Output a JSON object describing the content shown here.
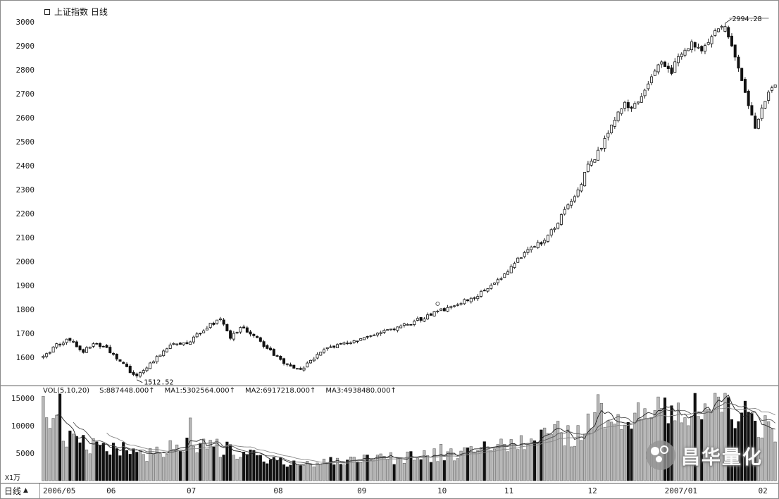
{
  "window": {
    "title": "上证指数 日线"
  },
  "price_pane": {
    "y_ticks": [
      "3000",
      "2900",
      "2800",
      "2700",
      "2600",
      "2500",
      "2400",
      "2300",
      "2200",
      "2100",
      "2000",
      "1900",
      "1800",
      "1700",
      "1600"
    ],
    "low_label": "1512.52",
    "high_label": "2994.28"
  },
  "volume_pane": {
    "header": {
      "indicator": "VOL(5,10,20)",
      "values": [
        "S:887448.000↑",
        "MA1:5302564.000↑",
        "MA2:6917218.000↑",
        "MA3:4938480.000↑"
      ]
    },
    "y_ticks": [
      "15000",
      "10000",
      "5000"
    ],
    "unit_label": "X1万"
  },
  "x_axis": {
    "period_label": "日线",
    "period_arrow": "▲",
    "labels": [
      "2006/05",
      "06",
      "07",
      "08",
      "09",
      "10",
      "11",
      "12",
      "2007/01",
      "02"
    ]
  },
  "watermark": {
    "text": "昌华量化"
  },
  "colors": {
    "up_body": "#ffffff",
    "down_body": "#111111",
    "outline": "#111111",
    "up_volume": "#b8b8b8",
    "ma_colors": [
      "#222222",
      "#555555",
      "#888888"
    ],
    "axis_text": "#222222"
  },
  "chart_data": {
    "type": "candlestick",
    "title": "上证指数 日线 (Shanghai Composite Index, daily, 2006/05 - 2007/02)",
    "x_labels": [
      "2006/05",
      "06",
      "07",
      "08",
      "09",
      "10",
      "11",
      "12",
      "2007/01",
      "02"
    ],
    "x_label_days": [
      0,
      19,
      43,
      69,
      94,
      118,
      138,
      163,
      186,
      214
    ],
    "days_total": 220,
    "price_axis": {
      "min": 1480,
      "max": 3060,
      "ticks": [
        1600,
        1700,
        1800,
        1900,
        2000,
        2100,
        2200,
        2300,
        2400,
        2500,
        2600,
        2700,
        2800,
        2900,
        3000
      ]
    },
    "volume_axis": {
      "ticks": [
        5000,
        10000,
        15000
      ],
      "unit": "×10000",
      "max": 16000
    },
    "annotations": {
      "low": {
        "day": 28,
        "value": 1512.52
      },
      "high": {
        "day": 204,
        "value": 2994.28
      },
      "circle_marker": {
        "day": 118,
        "price": 1800
      }
    },
    "close_anchors": [
      [
        0,
        1600
      ],
      [
        4,
        1650
      ],
      [
        8,
        1675
      ],
      [
        12,
        1625
      ],
      [
        16,
        1658
      ],
      [
        19,
        1635
      ],
      [
        22,
        1600
      ],
      [
        25,
        1555
      ],
      [
        28,
        1515
      ],
      [
        31,
        1562
      ],
      [
        35,
        1612
      ],
      [
        39,
        1655
      ],
      [
        43,
        1662
      ],
      [
        47,
        1700
      ],
      [
        50,
        1735
      ],
      [
        53,
        1757
      ],
      [
        56,
        1685
      ],
      [
        59,
        1722
      ],
      [
        62,
        1705
      ],
      [
        65,
        1660
      ],
      [
        69,
        1612
      ],
      [
        72,
        1575
      ],
      [
        75,
        1548
      ],
      [
        78,
        1560
      ],
      [
        81,
        1600
      ],
      [
        85,
        1638
      ],
      [
        89,
        1652
      ],
      [
        94,
        1668
      ],
      [
        98,
        1692
      ],
      [
        102,
        1712
      ],
      [
        106,
        1728
      ],
      [
        110,
        1742
      ],
      [
        114,
        1768
      ],
      [
        118,
        1790
      ],
      [
        122,
        1812
      ],
      [
        126,
        1838
      ],
      [
        130,
        1862
      ],
      [
        134,
        1898
      ],
      [
        138,
        1945
      ],
      [
        141,
        1995
      ],
      [
        144,
        2040
      ],
      [
        147,
        2065
      ],
      [
        150,
        2090
      ],
      [
        153,
        2140
      ],
      [
        156,
        2210
      ],
      [
        159,
        2280
      ],
      [
        161,
        2330
      ],
      [
        163,
        2395
      ],
      [
        166,
        2455
      ],
      [
        169,
        2535
      ],
      [
        172,
        2615
      ],
      [
        174,
        2660
      ],
      [
        176,
        2635
      ],
      [
        179,
        2700
      ],
      [
        182,
        2765
      ],
      [
        185,
        2830
      ],
      [
        188,
        2795
      ],
      [
        191,
        2870
      ],
      [
        194,
        2915
      ],
      [
        197,
        2865
      ],
      [
        200,
        2945
      ],
      [
        204,
        2988
      ],
      [
        206,
        2905
      ],
      [
        208,
        2805
      ],
      [
        210,
        2700
      ],
      [
        212,
        2615
      ],
      [
        213,
        2555
      ],
      [
        215,
        2640
      ],
      [
        217,
        2705
      ],
      [
        219,
        2740
      ]
    ],
    "volume_anchors": [
      [
        0,
        9000
      ],
      [
        3,
        10000
      ],
      [
        6,
        8200
      ],
      [
        10,
        7200
      ],
      [
        14,
        6400
      ],
      [
        18,
        7000
      ],
      [
        22,
        6000
      ],
      [
        26,
        5000
      ],
      [
        30,
        4300
      ],
      [
        35,
        5200
      ],
      [
        40,
        6200
      ],
      [
        45,
        6800
      ],
      [
        50,
        6400
      ],
      [
        55,
        5600
      ],
      [
        60,
        5000
      ],
      [
        65,
        4300
      ],
      [
        70,
        3700
      ],
      [
        75,
        3200
      ],
      [
        80,
        3400
      ],
      [
        85,
        3600
      ],
      [
        90,
        3500
      ],
      [
        95,
        3700
      ],
      [
        100,
        3900
      ],
      [
        105,
        4100
      ],
      [
        110,
        4300
      ],
      [
        115,
        4600
      ],
      [
        120,
        4800
      ],
      [
        125,
        5100
      ],
      [
        130,
        5400
      ],
      [
        135,
        5800
      ],
      [
        140,
        6600
      ],
      [
        145,
        7400
      ],
      [
        150,
        8200
      ],
      [
        154,
        9000
      ],
      [
        158,
        8200
      ],
      [
        162,
        9400
      ],
      [
        166,
        10200
      ],
      [
        170,
        9400
      ],
      [
        174,
        10800
      ],
      [
        178,
        11200
      ],
      [
        182,
        11800
      ],
      [
        186,
        12200
      ],
      [
        190,
        12600
      ],
      [
        194,
        13200
      ],
      [
        198,
        14400
      ],
      [
        201,
        15200
      ],
      [
        204,
        14200
      ],
      [
        207,
        12800
      ],
      [
        210,
        11400
      ],
      [
        213,
        10200
      ],
      [
        216,
        10800
      ],
      [
        219,
        9600
      ]
    ],
    "volume_ma_periods": [
      5,
      10,
      20
    ]
  }
}
